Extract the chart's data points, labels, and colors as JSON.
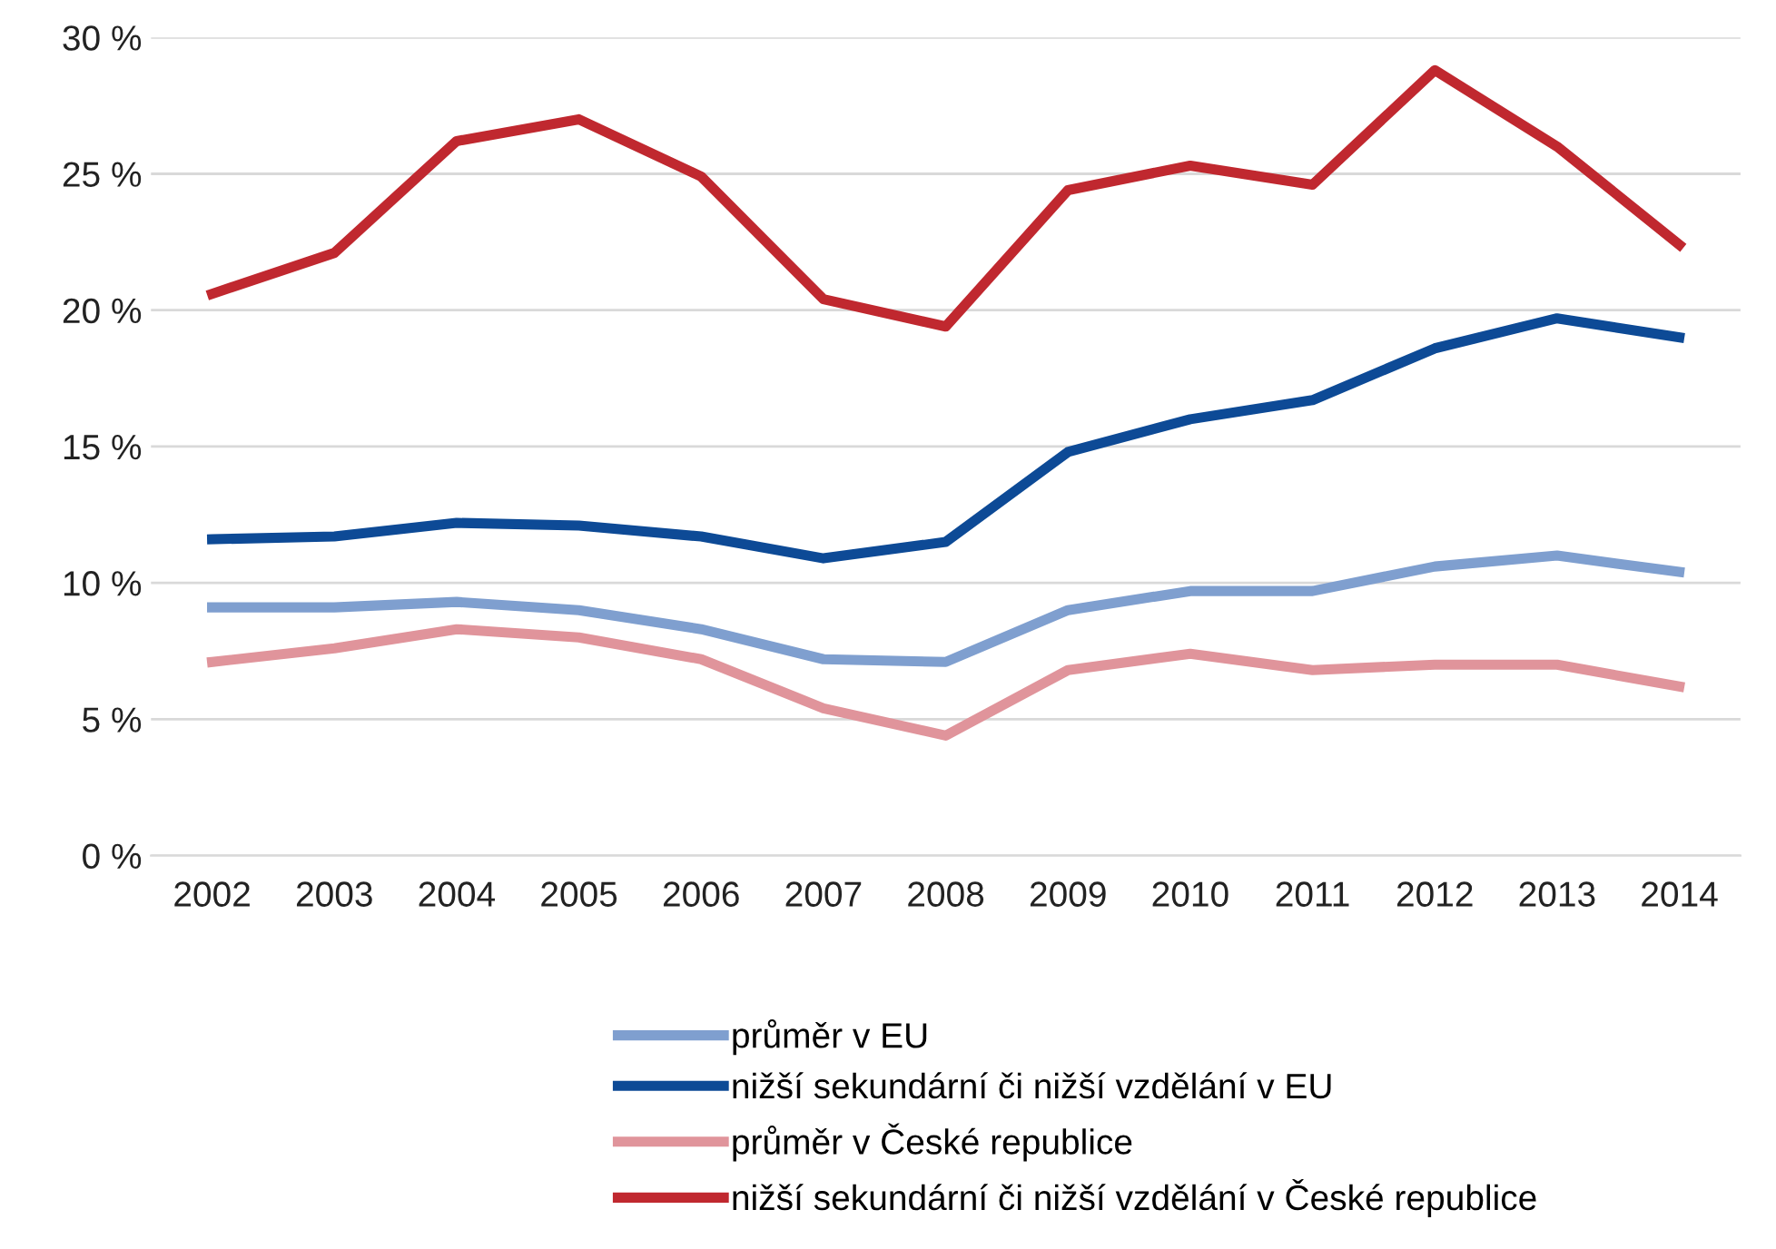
{
  "chart_data": {
    "type": "line",
    "categories": [
      "2002",
      "2003",
      "2004",
      "2005",
      "2006",
      "2007",
      "2008",
      "2009",
      "2010",
      "2011",
      "2012",
      "2013",
      "2014"
    ],
    "series": [
      {
        "name": "průměr v EU",
        "color": "#7f9fcf",
        "values": [
          9.1,
          9.1,
          9.3,
          9.0,
          8.3,
          7.2,
          7.1,
          9.0,
          9.7,
          9.7,
          10.6,
          11.0,
          10.4
        ]
      },
      {
        "name": "nižší sekundární či nižší vzdělání v EU",
        "color": "#0d4a96",
        "values": [
          11.6,
          11.7,
          12.2,
          12.1,
          11.7,
          10.9,
          11.5,
          14.8,
          16.0,
          16.7,
          18.6,
          19.7,
          19.0
        ]
      },
      {
        "name": "průměr v České republice",
        "color": "#e0949b",
        "values": [
          7.1,
          7.6,
          8.3,
          8.0,
          7.2,
          5.4,
          4.4,
          6.8,
          7.4,
          6.8,
          7.0,
          7.0,
          6.2
        ]
      },
      {
        "name": "nižší sekundární či nižší vzdělání v České republice",
        "color": "#c0282f",
        "values": [
          20.6,
          22.1,
          26.2,
          27.0,
          24.9,
          20.4,
          19.4,
          24.4,
          25.3,
          24.6,
          28.8,
          26.0,
          22.4
        ]
      }
    ],
    "ylim": [
      0,
      30
    ],
    "yticks": [
      {
        "value": 0,
        "label": "0 %"
      },
      {
        "value": 5,
        "label": "5 %"
      },
      {
        "value": 10,
        "label": "10 %"
      },
      {
        "value": 15,
        "label": "15 %"
      },
      {
        "value": 20,
        "label": "20 %"
      },
      {
        "value": 25,
        "label": "25 %"
      },
      {
        "value": 30,
        "label": "30 %"
      }
    ],
    "grid": "y",
    "legend": "bottom",
    "marker": "none",
    "line_style": "solid"
  }
}
